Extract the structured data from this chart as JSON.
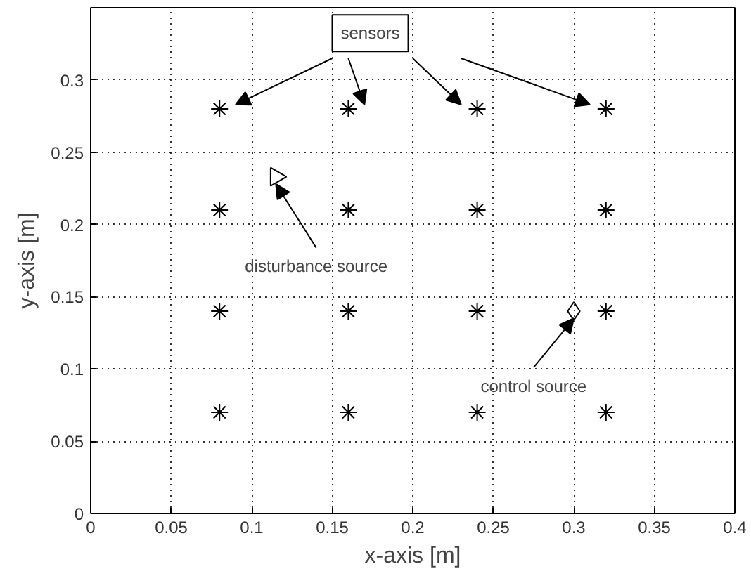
{
  "chart_data": {
    "type": "scatter",
    "xlabel": "x-axis [m]",
    "ylabel": "y-axis [m]",
    "xlim": [
      0,
      0.4
    ],
    "ylim": [
      0,
      0.35
    ],
    "xticks": [
      0,
      0.05,
      0.1,
      0.15,
      0.2,
      0.25,
      0.3,
      0.35,
      0.4
    ],
    "yticks": [
      0,
      0.05,
      0.1,
      0.15,
      0.2,
      0.25,
      0.3
    ],
    "grid": true,
    "series": [
      {
        "color": "#000000",
        "marker": "cross",
        "x": [
          0.08,
          0.16,
          0.24,
          0.32,
          0.08,
          0.16,
          0.24,
          0.32,
          0.08,
          0.16,
          0.24,
          0.32,
          0.08,
          0.16,
          0.24,
          0.32
        ],
        "values": [
          0.28,
          0.28,
          0.28,
          0.28,
          0.21,
          0.21,
          0.21,
          0.21,
          0.14,
          0.14,
          0.14,
          0.14,
          0.07,
          0.07,
          0.07,
          0.07
        ]
      },
      {
        "color": "#000000",
        "marker": "triangle",
        "x": [
          0.115
        ],
        "values": [
          0.233
        ]
      },
      {
        "color": "#000000",
        "marker": "diamond",
        "x": [
          0.3
        ],
        "values": [
          0.14
        ]
      }
    ],
    "annotations": [
      "sensors",
      {
        "text": "disturbance source",
        "x": 0.115,
        "y": 0.233
      },
      {
        "text": "control source",
        "x": 0.3,
        "y": 0.14
      }
    ]
  }
}
